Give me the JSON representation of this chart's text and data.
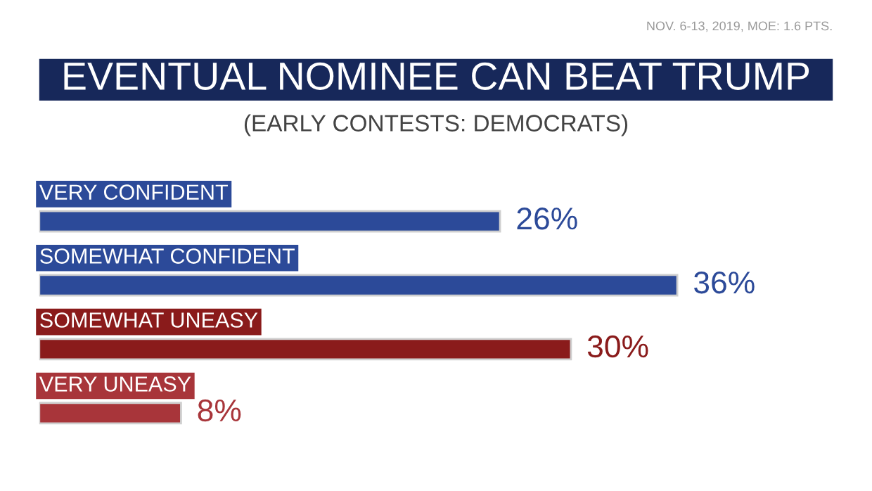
{
  "chart_data": {
    "type": "bar",
    "orientation": "horizontal",
    "title": "EVENTUAL NOMINEE CAN BEAT TRUMP",
    "subtitle": "(EARLY CONTESTS: DEMOCRATS)",
    "annotations": [
      "NOV. 6-13, 2019, MOE: 1.6 PTS."
    ],
    "categories": [
      "VERY CONFIDENT",
      "SOMEWHAT CONFIDENT",
      "SOMEWHAT UNEASY",
      "VERY UNEASY"
    ],
    "values": [
      26,
      36,
      30,
      8
    ],
    "colors": [
      "#2c4a99",
      "#2c4a99",
      "#8a1b1b",
      "#a8353a"
    ],
    "value_labels": [
      "26%",
      "36%",
      "30%",
      "8%"
    ]
  }
}
